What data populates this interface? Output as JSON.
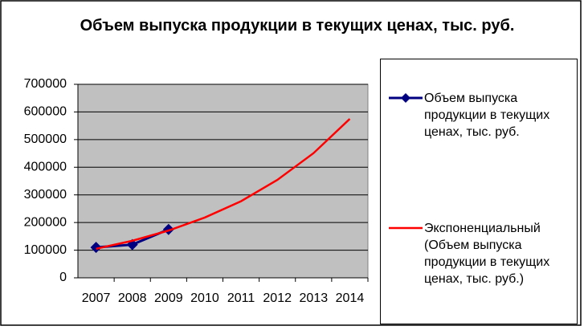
{
  "chart_data": {
    "type": "line",
    "title": "Объем выпуска продукции в текущих ценах, тыс. руб.",
    "categories": [
      "2007",
      "2008",
      "2009",
      "2010",
      "2011",
      "2012",
      "2013",
      "2014"
    ],
    "series": [
      {
        "name": "Объем выпуска продукции в текущих ценах, тыс. руб.",
        "color": "#000080",
        "marker": "diamond",
        "values": [
          110000,
          120000,
          175000,
          null,
          null,
          null,
          null,
          null
        ]
      },
      {
        "name": "Экспоненциальный (Объем выпуска продукции в текущих ценах, тыс. руб.)",
        "color": "#ff0000",
        "values": [
          105000,
          134000,
          171000,
          218000,
          277000,
          354000,
          451000,
          575000
        ]
      }
    ],
    "ylim": [
      0,
      700000
    ],
    "yticks": [
      0,
      100000,
      200000,
      300000,
      400000,
      500000,
      600000,
      700000
    ],
    "grid": true,
    "legend": "right"
  }
}
